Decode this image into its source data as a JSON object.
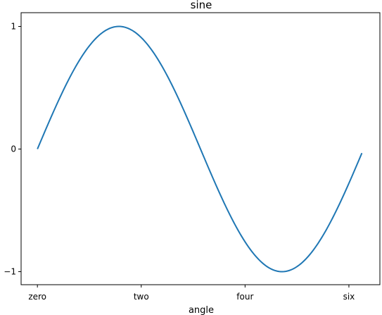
{
  "chart_data": {
    "type": "line",
    "title": "sine",
    "xlabel": "angle",
    "ylabel": "",
    "xlim": [
      -0.314,
      6.597
    ],
    "ylim": [
      -1.1,
      1.0
    ],
    "xticks": [
      {
        "value": 0,
        "label": "zero"
      },
      {
        "value": 2,
        "label": "two"
      },
      {
        "value": 4,
        "label": "four"
      },
      {
        "value": 6,
        "label": "six"
      }
    ],
    "yticks": [
      {
        "value": -1,
        "label": "−1"
      },
      {
        "value": 0,
        "label": "0"
      },
      {
        "value": 1,
        "label": "1"
      }
    ],
    "grid": false,
    "legend": "none",
    "series": [
      {
        "function": "sin",
        "x_range": [
          0,
          6.25
        ],
        "samples": 200,
        "color": "#1f77b4"
      }
    ]
  }
}
